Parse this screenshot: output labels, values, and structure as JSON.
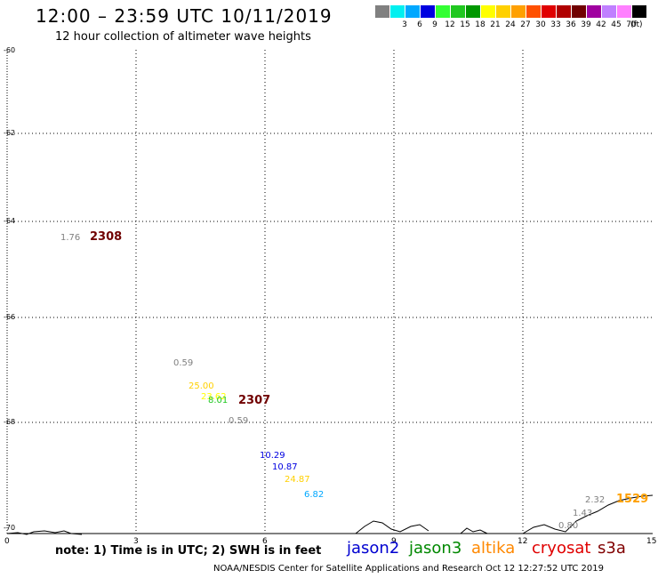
{
  "title": "12:00 – 23:59 UTC 10/11/2019",
  "subtitle": "12 hour collection of altimeter wave heights",
  "color_scale": {
    "unit": "(ft)",
    "entries": [
      {
        "label": "",
        "color": "#808080"
      },
      {
        "label": "3",
        "color": "#00f0f0"
      },
      {
        "label": "6",
        "color": "#00a8ff"
      },
      {
        "label": "9",
        "color": "#0000e0"
      },
      {
        "label": "12",
        "color": "#33ff33"
      },
      {
        "label": "15",
        "color": "#20c820"
      },
      {
        "label": "18",
        "color": "#009800"
      },
      {
        "label": "21",
        "color": "#ffff00"
      },
      {
        "label": "24",
        "color": "#ffd000"
      },
      {
        "label": "27",
        "color": "#ffa000"
      },
      {
        "label": "30",
        "color": "#ff5000"
      },
      {
        "label": "33",
        "color": "#e00000"
      },
      {
        "label": "36",
        "color": "#b00000"
      },
      {
        "label": "39",
        "color": "#700000"
      },
      {
        "label": "42",
        "color": "#a000a0"
      },
      {
        "label": "45",
        "color": "#c080ff"
      },
      {
        "label": "70",
        "color": "#ff80ff"
      },
      {
        "label": "",
        "color": "#000000"
      }
    ]
  },
  "y_axis": {
    "ticks": [
      "-60",
      "-62",
      "-64",
      "-66",
      "-68",
      "-70"
    ]
  },
  "x_axis": {
    "ticks": [
      "0",
      "3",
      "6",
      "9",
      "12",
      "15"
    ]
  },
  "readings": [
    {
      "text": "1.76",
      "color": "#808080"
    },
    {
      "text": "0.59",
      "color": "#808080"
    },
    {
      "text": "25.00",
      "color": "#ffd000"
    },
    {
      "text": "23.62",
      "color": "#ffff00"
    },
    {
      "text": "8.01",
      "color": "#20c820"
    },
    {
      "text": "0.59",
      "color": "#808080"
    },
    {
      "text": "10.29",
      "color": "#0000e0"
    },
    {
      "text": "10.87",
      "color": "#0000e0"
    },
    {
      "text": "24.87",
      "color": "#ffd000"
    },
    {
      "text": "6.82",
      "color": "#00a8ff"
    },
    {
      "text": "2.32",
      "color": "#808080"
    },
    {
      "text": "1.43",
      "color": "#808080"
    },
    {
      "text": "0.80",
      "color": "#808080"
    }
  ],
  "pass_times": [
    {
      "text": "2308",
      "color": "#700000"
    },
    {
      "text": "2307",
      "color": "#700000"
    },
    {
      "text": "1529",
      "color": "#ffa000"
    }
  ],
  "note": "note: 1) Time is in UTC; 2) SWH is in feet",
  "satellites": [
    {
      "name": "jason2",
      "color": "#0000d0"
    },
    {
      "name": "jason3",
      "color": "#008800"
    },
    {
      "name": "altika",
      "color": "#ff8800"
    },
    {
      "name": "cryosat",
      "color": "#e00000"
    },
    {
      "name": "s3a",
      "color": "#800000"
    }
  ],
  "footer": "NOAA/NESDIS Center for Satellite Applications and Research    Oct 12 12:27:52 UTC 2019"
}
